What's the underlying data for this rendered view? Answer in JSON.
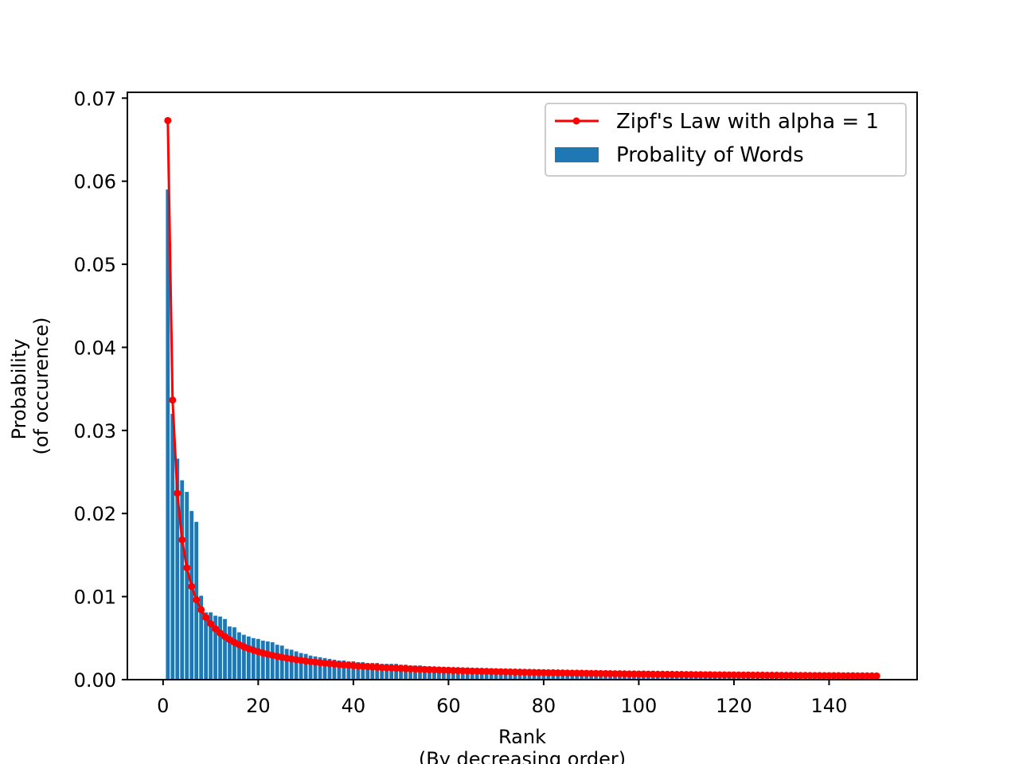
{
  "chart_data": {
    "type": "bar",
    "title": "",
    "xlabel_lines": [
      "Rank",
      "(By decreasing order)"
    ],
    "ylabel_lines": [
      "Probability",
      "(of occurence)"
    ],
    "xlim": [
      -7.5,
      158.5
    ],
    "ylim": [
      0,
      0.0707
    ],
    "x_ticks": [
      0,
      20,
      40,
      60,
      80,
      100,
      120,
      140
    ],
    "x_tick_labels": [
      "0",
      "20",
      "40",
      "60",
      "80",
      "100",
      "120",
      "140"
    ],
    "y_ticks": [
      0,
      0.01,
      0.02,
      0.03,
      0.04,
      0.05,
      0.06,
      0.07
    ],
    "y_tick_labels": [
      "0.00",
      "0.01",
      "0.02",
      "0.03",
      "0.04",
      "0.05",
      "0.06",
      "0.07"
    ],
    "grid": false,
    "legend": {
      "position": "upper right",
      "entries": [
        {
          "label": "Zipf's Law with alpha = 1",
          "kind": "line-marker",
          "color": "#ff0000"
        },
        {
          "label": "Probality of Words",
          "kind": "bar",
          "color": "#1f77b4"
        }
      ]
    },
    "series": [
      {
        "name": "Probality of Words",
        "kind": "bar",
        "color": "#1f77b4",
        "x_start": 1,
        "values": [
          0.059,
          0.032,
          0.0266,
          0.024,
          0.0226,
          0.0203,
          0.019,
          0.0101,
          0.0081,
          0.0081,
          0.0077,
          0.0076,
          0.0073,
          0.0064,
          0.0063,
          0.0057,
          0.0054,
          0.0052,
          0.005,
          0.0049,
          0.0047,
          0.0046,
          0.0045,
          0.0042,
          0.0041,
          0.0037,
          0.0036,
          0.0034,
          0.0032,
          0.0031,
          0.0029,
          0.0028,
          0.0027,
          0.0026,
          0.0025,
          0.0024,
          0.0023,
          0.0023,
          0.0022,
          0.0022,
          0.0021,
          0.0021,
          0.002,
          0.002,
          0.002,
          0.0019,
          0.0019,
          0.0019,
          0.0019,
          0.0018,
          0.0018,
          0.0017,
          0.0017,
          0.0017,
          0.0016,
          0.0016,
          0.0015,
          0.0015,
          0.0015,
          0.0015,
          0.0014,
          0.0014,
          0.0014,
          0.0014,
          0.0013,
          0.0013,
          0.0013,
          0.0012,
          0.0012,
          0.0012,
          0.0012,
          0.0012,
          0.0011,
          0.0011,
          0.0011,
          0.0011,
          0.0011,
          0.0011,
          0.0011,
          0.001,
          0.001,
          0.001,
          0.001,
          0.001,
          0.001,
          0.001,
          0.001,
          0.001,
          0.001,
          0.001,
          0.0009,
          0.0009,
          0.0009,
          0.0009,
          0.0009,
          0.0009,
          0.0009,
          0.0009,
          0.0009,
          0.0009,
          0.0009,
          0.0009,
          0.0009,
          0.0008,
          0.0008,
          0.0008,
          0.0008,
          0.0008,
          0.0008,
          0.0008,
          0.0008,
          0.0008,
          0.0007,
          0.0007,
          0.0007,
          0.0007,
          0.0007,
          0.0007,
          0.0007,
          0.0007,
          0.0007,
          0.0007,
          0.0007,
          0.0007,
          0.0007,
          0.0007,
          0.0007,
          0.0007,
          0.0006,
          0.0006,
          0.0006,
          0.0006,
          0.0006,
          0.0006,
          0.0006,
          0.0006,
          0.0006,
          0.0006,
          0.0006,
          0.0006,
          0.0006,
          0.0006,
          0.0006,
          0.0006,
          0.0006,
          0.0006,
          0.0005,
          0.0005,
          0.0005,
          0.0005
        ]
      },
      {
        "name": "Zipf's Law with alpha = 1",
        "kind": "line-marker",
        "color": "#ff0000",
        "x_start": 1,
        "count": 150,
        "formula": "0.0673 / rank"
      }
    ]
  }
}
